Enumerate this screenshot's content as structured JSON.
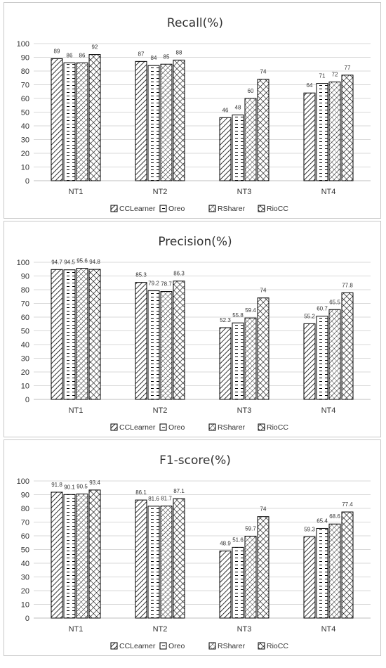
{
  "colors": {
    "bar_stroke": "#000000",
    "grid": "#d9d9d9",
    "axis": "#bfbfbf",
    "text": "#333333"
  },
  "chart_data": [
    {
      "type": "bar",
      "title": "Recall(%)",
      "categories": [
        "NT1",
        "NT2",
        "NT3",
        "NT4"
      ],
      "ylim": [
        0,
        100
      ],
      "yticks": [
        0,
        10,
        20,
        30,
        40,
        50,
        60,
        70,
        80,
        90,
        100
      ],
      "grid": true,
      "legend_position": "bottom",
      "series": [
        {
          "name": "CCLearner",
          "values": [
            89,
            87,
            46,
            64
          ],
          "labels": [
            "89",
            "87",
            "46",
            "64"
          ]
        },
        {
          "name": "Oreo",
          "values": [
            86,
            84,
            48,
            71
          ],
          "labels": [
            "86",
            "84",
            "48",
            "71"
          ]
        },
        {
          "name": "RSharer",
          "values": [
            86,
            85,
            60,
            72
          ],
          "labels": [
            "86",
            "85",
            "60",
            "72"
          ]
        },
        {
          "name": "RioCC",
          "values": [
            92,
            88,
            74,
            77
          ],
          "labels": [
            "92",
            "88",
            "74",
            "77"
          ]
        }
      ]
    },
    {
      "type": "bar",
      "title": "Precision(%)",
      "categories": [
        "NT1",
        "NT2",
        "NT3",
        "NT4"
      ],
      "ylim": [
        0,
        100
      ],
      "yticks": [
        0,
        10,
        20,
        30,
        40,
        50,
        60,
        70,
        80,
        90,
        100
      ],
      "grid": true,
      "legend_position": "bottom",
      "series": [
        {
          "name": "CCLearner",
          "values": [
            94.7,
            85.3,
            52.3,
            55.2
          ],
          "labels": [
            "94.7",
            "85.3",
            "52.3",
            "55.2"
          ]
        },
        {
          "name": "Oreo",
          "values": [
            94.5,
            79.2,
            55.8,
            60.7
          ],
          "labels": [
            "94.5",
            "79.2",
            "55.8",
            "60.7"
          ]
        },
        {
          "name": "RSharer",
          "values": [
            95.6,
            78.7,
            59.4,
            65.5
          ],
          "labels": [
            "95.6",
            "78.7",
            "59.4",
            "65.5"
          ]
        },
        {
          "name": "RioCC",
          "values": [
            94.8,
            86.3,
            74,
            77.8
          ],
          "labels": [
            "94.8",
            "86.3",
            "74",
            "77.8"
          ]
        }
      ]
    },
    {
      "type": "bar",
      "title": "F1-score(%)",
      "categories": [
        "NT1",
        "NT2",
        "NT3",
        "NT4"
      ],
      "ylim": [
        0,
        100
      ],
      "yticks": [
        0,
        10,
        20,
        30,
        40,
        50,
        60,
        70,
        80,
        90,
        100
      ],
      "grid": true,
      "legend_position": "bottom",
      "series": [
        {
          "name": "CCLearner",
          "values": [
            91.8,
            86.1,
            48.9,
            59.3
          ],
          "labels": [
            "91.8",
            "86.1",
            "48.9",
            "59.3"
          ]
        },
        {
          "name": "Oreo",
          "values": [
            90.1,
            81.6,
            51.6,
            65.4
          ],
          "labels": [
            "90.1",
            "81.6",
            "51.6",
            "65.4"
          ]
        },
        {
          "name": "RSharer",
          "values": [
            90.5,
            81.7,
            59.7,
            68.6
          ],
          "labels": [
            "90.5",
            "81.7",
            "59.7",
            "68.6"
          ]
        },
        {
          "name": "RioCC",
          "values": [
            93.4,
            87.1,
            74,
            77.4
          ],
          "labels": [
            "93.4",
            "87.1",
            "74",
            "77.4"
          ]
        }
      ]
    }
  ]
}
